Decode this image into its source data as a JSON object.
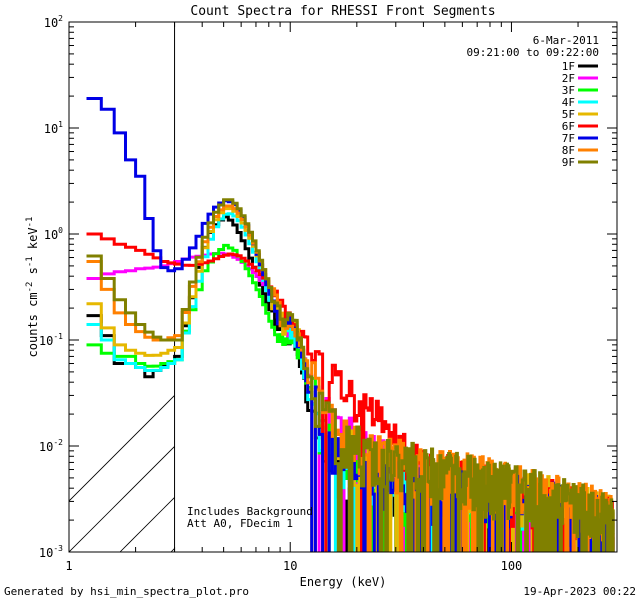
{
  "chart_data": {
    "type": "line",
    "title": "Count Spectra for RHESSI Front Segments",
    "xlabel": "Energy (keV)",
    "ylabel": {
      "base": "counts cm",
      "sup1": "-2",
      "mid1": " s",
      "sup2": "-1",
      "mid2": " keV",
      "sup3": "-1"
    },
    "xscale": "log",
    "yscale": "log",
    "xlim": [
      1,
      300
    ],
    "ylim": [
      0.001,
      100
    ],
    "x_ticks": [
      {
        "v": 1,
        "label": "1"
      },
      {
        "v": 10,
        "label": "10"
      },
      {
        "v": 100,
        "label": "100"
      }
    ],
    "y_ticks": [
      {
        "v": 0.001,
        "base": "10",
        "exp": "-3"
      },
      {
        "v": 0.01,
        "base": "10",
        "exp": "-2"
      },
      {
        "v": 0.1,
        "base": "10",
        "exp": "-1"
      },
      {
        "v": 1,
        "base": "10",
        "exp": "0"
      },
      {
        "v": 10,
        "base": "10",
        "exp": "1"
      },
      {
        "v": 100,
        "base": "10",
        "exp": "2"
      }
    ],
    "hatch_region": [
      1,
      3
    ],
    "date": "6-Mar-2011",
    "time_range": "09:21:00 to 09:22:00",
    "notes": [
      "Includes Background",
      "Att A0, FDecim 1"
    ],
    "series": [
      {
        "name": "1F",
        "color": "#000000",
        "base": [
          [
            1.2,
            0.17
          ],
          [
            1.4,
            0.11
          ],
          [
            1.6,
            0.06
          ],
          [
            1.8,
            0.06
          ],
          [
            2.0,
            0.055
          ],
          [
            2.2,
            0.045
          ],
          [
            2.5,
            0.055
          ],
          [
            2.8,
            0.06
          ],
          [
            3.0,
            0.07
          ],
          [
            3.2,
            0.12
          ],
          [
            3.5,
            0.25
          ],
          [
            3.8,
            0.55
          ],
          [
            4.2,
            1.0
          ],
          [
            4.6,
            1.3
          ],
          [
            5.0,
            1.45
          ],
          [
            5.4,
            1.3
          ],
          [
            5.8,
            1.0
          ],
          [
            6.3,
            0.7
          ],
          [
            7,
            0.4
          ],
          [
            7.8,
            0.22
          ],
          [
            8.5,
            0.14
          ],
          [
            9.5,
            0.12
          ],
          [
            10.5,
            0.09
          ],
          [
            11.5,
            0.04
          ],
          [
            12.5,
            0.012
          ],
          [
            14,
            0.008
          ],
          [
            17,
            0.005
          ],
          [
            20,
            0.0035
          ],
          [
            30,
            0.0028
          ],
          [
            50,
            0.0025
          ],
          [
            80,
            0.0022
          ],
          [
            120,
            0.002
          ],
          [
            200,
            0.0016
          ],
          [
            290,
            0.0013
          ]
        ]
      },
      {
        "name": "2F",
        "color": "#ff00ff",
        "base": [
          [
            1.2,
            0.38
          ],
          [
            1.4,
            0.42
          ],
          [
            1.6,
            0.44
          ],
          [
            1.8,
            0.45
          ],
          [
            2.0,
            0.47
          ],
          [
            2.3,
            0.48
          ],
          [
            2.6,
            0.5
          ],
          [
            3.0,
            0.55
          ],
          [
            3.4,
            0.6
          ],
          [
            3.8,
            0.62
          ],
          [
            4.3,
            0.65
          ],
          [
            4.8,
            0.66
          ],
          [
            5.3,
            0.63
          ],
          [
            5.8,
            0.57
          ],
          [
            6.3,
            0.5
          ],
          [
            7,
            0.4
          ],
          [
            7.8,
            0.3
          ],
          [
            8.5,
            0.2
          ],
          [
            9.5,
            0.13
          ],
          [
            10.5,
            0.1
          ],
          [
            11.5,
            0.06
          ],
          [
            13,
            0.03
          ],
          [
            15,
            0.015
          ],
          [
            18,
            0.01
          ],
          [
            22,
            0.007
          ],
          [
            30,
            0.005
          ],
          [
            50,
            0.0035
          ],
          [
            80,
            0.003
          ],
          [
            120,
            0.0025
          ],
          [
            200,
            0.002
          ],
          [
            290,
            0.0015
          ]
        ]
      },
      {
        "name": "3F",
        "color": "#00ff00",
        "base": [
          [
            1.2,
            0.09
          ],
          [
            1.4,
            0.075
          ],
          [
            1.6,
            0.07
          ],
          [
            1.8,
            0.07
          ],
          [
            2.0,
            0.06
          ],
          [
            2.3,
            0.055
          ],
          [
            2.6,
            0.06
          ],
          [
            3.0,
            0.065
          ],
          [
            3.2,
            0.11
          ],
          [
            3.6,
            0.23
          ],
          [
            4.0,
            0.45
          ],
          [
            4.5,
            0.65
          ],
          [
            5.0,
            0.78
          ],
          [
            5.5,
            0.7
          ],
          [
            6.0,
            0.55
          ],
          [
            6.6,
            0.38
          ],
          [
            7.3,
            0.25
          ],
          [
            8.0,
            0.15
          ],
          [
            9.0,
            0.1
          ],
          [
            10.2,
            0.11
          ],
          [
            11,
            0.07
          ],
          [
            12,
            0.03
          ],
          [
            14,
            0.01
          ],
          [
            17,
            0.006
          ],
          [
            20,
            0.004
          ],
          [
            30,
            0.003
          ],
          [
            50,
            0.0027
          ],
          [
            80,
            0.0024
          ],
          [
            120,
            0.0022
          ],
          [
            200,
            0.0018
          ],
          [
            290,
            0.0014
          ]
        ]
      },
      {
        "name": "4F",
        "color": "#00ffff",
        "base": [
          [
            1.2,
            0.14
          ],
          [
            1.4,
            0.1
          ],
          [
            1.6,
            0.065
          ],
          [
            1.8,
            0.06
          ],
          [
            2.0,
            0.055
          ],
          [
            2.3,
            0.05
          ],
          [
            2.6,
            0.055
          ],
          [
            3.0,
            0.065
          ],
          [
            3.3,
            0.13
          ],
          [
            3.7,
            0.32
          ],
          [
            4.1,
            0.75
          ],
          [
            4.6,
            1.3
          ],
          [
            5.1,
            1.6
          ],
          [
            5.6,
            1.45
          ],
          [
            6.1,
            1.1
          ],
          [
            6.7,
            0.7
          ],
          [
            7.4,
            0.4
          ],
          [
            8.2,
            0.2
          ],
          [
            9.2,
            0.12
          ],
          [
            10.2,
            0.13
          ],
          [
            11,
            0.08
          ],
          [
            12,
            0.03
          ],
          [
            14,
            0.01
          ],
          [
            17,
            0.006
          ],
          [
            20,
            0.0045
          ],
          [
            30,
            0.0035
          ],
          [
            50,
            0.003
          ],
          [
            80,
            0.0028
          ],
          [
            120,
            0.0025
          ],
          [
            200,
            0.002
          ],
          [
            290,
            0.0015
          ]
        ]
      },
      {
        "name": "5F",
        "color": "#e6b800",
        "base": [
          [
            1.2,
            0.22
          ],
          [
            1.4,
            0.13
          ],
          [
            1.6,
            0.09
          ],
          [
            1.8,
            0.08
          ],
          [
            2.0,
            0.075
          ],
          [
            2.3,
            0.07
          ],
          [
            2.6,
            0.075
          ],
          [
            3.0,
            0.085
          ],
          [
            3.3,
            0.16
          ],
          [
            3.7,
            0.4
          ],
          [
            4.1,
            0.9
          ],
          [
            4.6,
            1.5
          ],
          [
            5.1,
            1.8
          ],
          [
            5.6,
            1.6
          ],
          [
            6.1,
            1.2
          ],
          [
            6.7,
            0.8
          ],
          [
            7.4,
            0.45
          ],
          [
            8.2,
            0.25
          ],
          [
            9.2,
            0.14
          ],
          [
            10.2,
            0.15
          ],
          [
            11,
            0.09
          ],
          [
            12,
            0.04
          ],
          [
            14,
            0.014
          ],
          [
            17,
            0.009
          ],
          [
            20,
            0.007
          ],
          [
            30,
            0.005
          ],
          [
            50,
            0.004
          ],
          [
            80,
            0.0033
          ],
          [
            120,
            0.003
          ],
          [
            200,
            0.0022
          ],
          [
            290,
            0.0017
          ]
        ]
      },
      {
        "name": "6F",
        "color": "#ff0000",
        "base": [
          [
            1.2,
            1.0
          ],
          [
            1.4,
            0.9
          ],
          [
            1.6,
            0.8
          ],
          [
            1.8,
            0.75
          ],
          [
            2.0,
            0.7
          ],
          [
            2.3,
            0.62
          ],
          [
            2.6,
            0.55
          ],
          [
            3.0,
            0.52
          ],
          [
            3.4,
            0.5
          ],
          [
            3.8,
            0.52
          ],
          [
            4.3,
            0.56
          ],
          [
            4.8,
            0.62
          ],
          [
            5.3,
            0.65
          ],
          [
            5.8,
            0.62
          ],
          [
            6.3,
            0.55
          ],
          [
            7,
            0.45
          ],
          [
            7.8,
            0.35
          ],
          [
            8.5,
            0.25
          ],
          [
            9.5,
            0.16
          ],
          [
            10.5,
            0.13
          ],
          [
            11.5,
            0.1
          ],
          [
            13,
            0.06
          ],
          [
            15,
            0.04
          ],
          [
            18,
            0.028
          ],
          [
            22,
            0.018
          ],
          [
            25,
            0.013
          ],
          [
            30,
            0.008
          ],
          [
            40,
            0.005
          ],
          [
            60,
            0.0038
          ],
          [
            90,
            0.0032
          ],
          [
            130,
            0.0027
          ],
          [
            200,
            0.0021
          ],
          [
            290,
            0.0016
          ]
        ]
      },
      {
        "name": "7F",
        "color": "#0000e6",
        "base": [
          [
            1.2,
            19
          ],
          [
            1.4,
            15
          ],
          [
            1.6,
            9
          ],
          [
            1.8,
            5
          ],
          [
            2.0,
            3.5
          ],
          [
            2.2,
            1.4
          ],
          [
            2.5,
            0.5
          ],
          [
            2.8,
            0.45
          ],
          [
            3.0,
            0.47
          ],
          [
            3.3,
            0.6
          ],
          [
            3.7,
            0.9
          ],
          [
            4.1,
            1.4
          ],
          [
            4.6,
            1.9
          ],
          [
            5.1,
            2.1
          ],
          [
            5.6,
            1.85
          ],
          [
            6.1,
            1.35
          ],
          [
            6.7,
            0.85
          ],
          [
            7.4,
            0.45
          ],
          [
            8.2,
            0.23
          ],
          [
            9.2,
            0.13
          ],
          [
            10.2,
            0.14
          ],
          [
            11,
            0.09
          ],
          [
            12,
            0.035
          ],
          [
            14,
            0.011
          ],
          [
            17,
            0.007
          ],
          [
            20,
            0.005
          ],
          [
            30,
            0.0037
          ],
          [
            50,
            0.0032
          ],
          [
            80,
            0.0029
          ],
          [
            120,
            0.0026
          ],
          [
            200,
            0.002
          ],
          [
            290,
            0.0015
          ]
        ]
      },
      {
        "name": "8F",
        "color": "#ff8000",
        "base": [
          [
            1.2,
            0.55
          ],
          [
            1.4,
            0.3
          ],
          [
            1.6,
            0.18
          ],
          [
            1.8,
            0.14
          ],
          [
            2.0,
            0.12
          ],
          [
            2.3,
            0.1
          ],
          [
            2.6,
            0.1
          ],
          [
            3.0,
            0.11
          ],
          [
            3.3,
            0.2
          ],
          [
            3.7,
            0.5
          ],
          [
            4.1,
            1.0
          ],
          [
            4.6,
            1.6
          ],
          [
            5.1,
            1.9
          ],
          [
            5.6,
            1.7
          ],
          [
            6.1,
            1.3
          ],
          [
            6.7,
            0.85
          ],
          [
            7.4,
            0.5
          ],
          [
            8.2,
            0.27
          ],
          [
            9.2,
            0.15
          ],
          [
            10.2,
            0.16
          ],
          [
            11,
            0.1
          ],
          [
            12,
            0.045
          ],
          [
            14,
            0.016
          ],
          [
            17,
            0.011
          ],
          [
            20,
            0.008
          ],
          [
            30,
            0.006
          ],
          [
            50,
            0.0048
          ],
          [
            80,
            0.004
          ],
          [
            120,
            0.0032
          ],
          [
            200,
            0.0024
          ],
          [
            290,
            0.0018
          ]
        ]
      },
      {
        "name": "9F",
        "color": "#808000",
        "base": [
          [
            1.2,
            0.62
          ],
          [
            1.4,
            0.38
          ],
          [
            1.6,
            0.24
          ],
          [
            1.8,
            0.18
          ],
          [
            2.0,
            0.14
          ],
          [
            2.3,
            0.11
          ],
          [
            2.6,
            0.1
          ],
          [
            3.0,
            0.1
          ],
          [
            3.3,
            0.22
          ],
          [
            3.7,
            0.55
          ],
          [
            4.1,
            1.1
          ],
          [
            4.6,
            1.75
          ],
          [
            5.1,
            2.2
          ],
          [
            5.6,
            1.9
          ],
          [
            6.1,
            1.4
          ],
          [
            6.7,
            0.9
          ],
          [
            7.4,
            0.5
          ],
          [
            8.2,
            0.27
          ],
          [
            9.2,
            0.15
          ],
          [
            10.2,
            0.16
          ],
          [
            11,
            0.1
          ],
          [
            12,
            0.045
          ],
          [
            14,
            0.016
          ],
          [
            17,
            0.011
          ],
          [
            20,
            0.008
          ],
          [
            30,
            0.006
          ],
          [
            50,
            0.0046
          ],
          [
            80,
            0.0038
          ],
          [
            120,
            0.0031
          ],
          [
            200,
            0.0023
          ],
          [
            290,
            0.0017
          ]
        ]
      }
    ]
  },
  "footer": {
    "generated": "Generated by hsi_min_spectra_plot.pro",
    "timestamp": "19-Apr-2023 00:22"
  }
}
